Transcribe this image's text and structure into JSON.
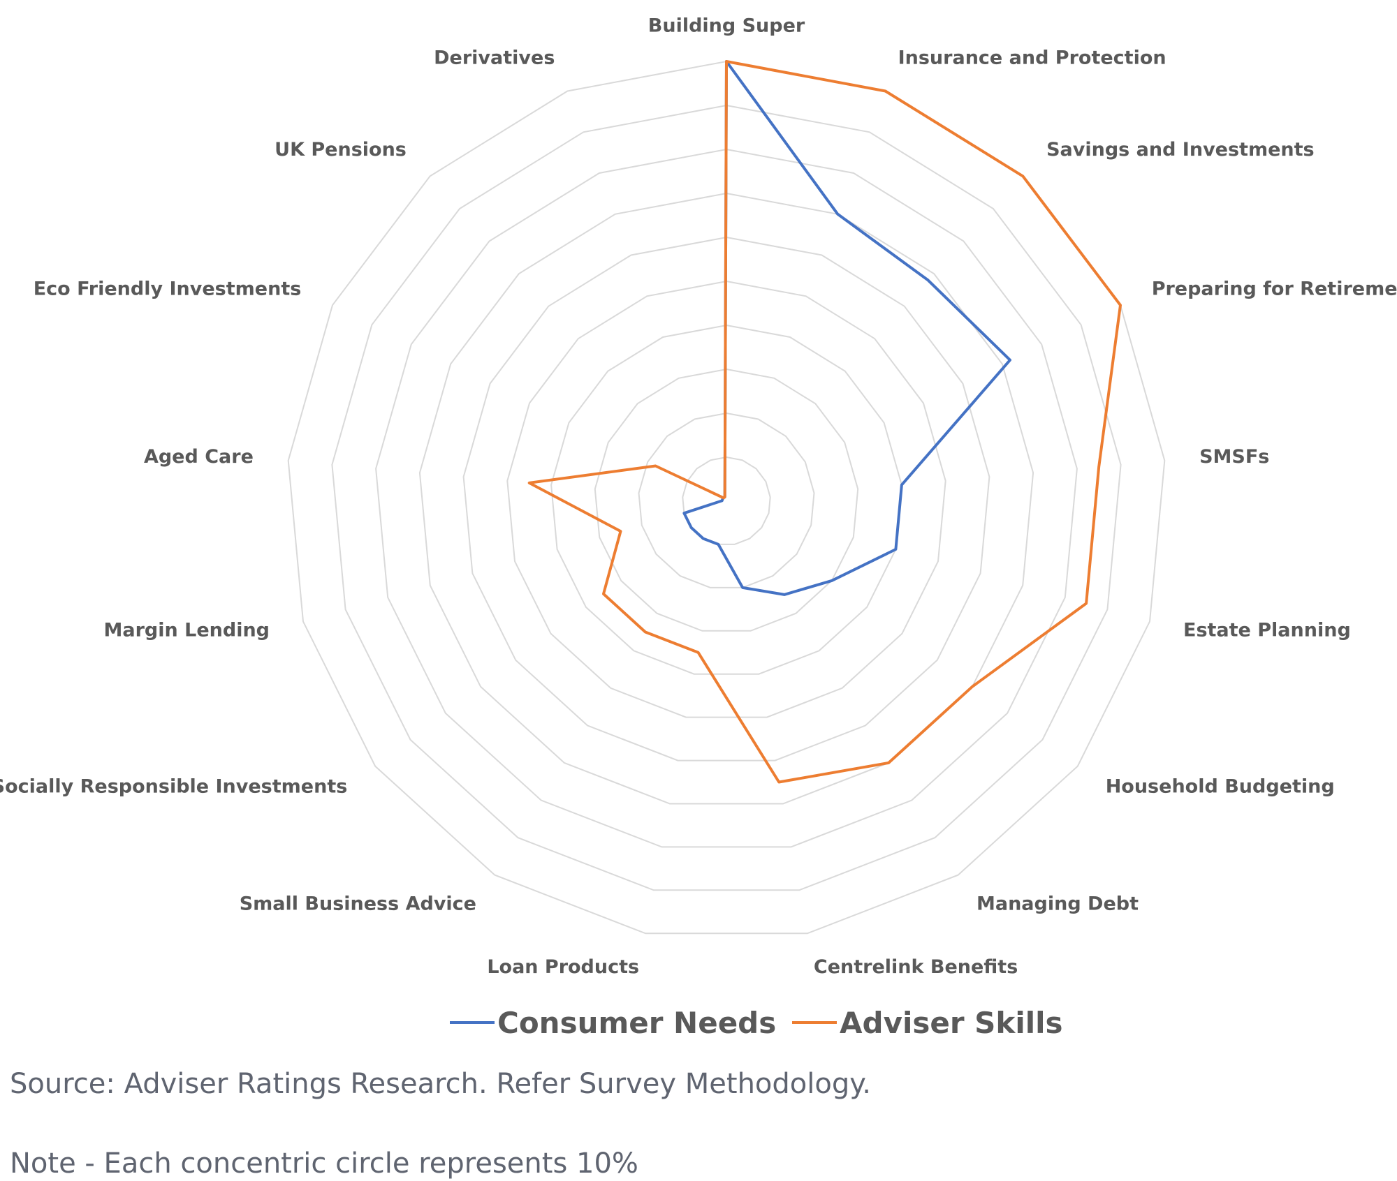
{
  "chart_data": {
    "type": "radar",
    "categories": [
      "Building Super",
      "Insurance and Protection",
      "Savings and Investments",
      "Preparing for Retirement",
      "SMSFs",
      "Estate Planning",
      "Household Budgeting",
      "Managing Debt",
      "Centrelink Benefits",
      "Loan Products",
      "Small Business Advice",
      "Socially Responsible Investments",
      "Margin Lending",
      "Aged Care",
      "Eco Friendly Investments",
      "UK Pensions",
      "Derivatives"
    ],
    "series": [
      {
        "name": "Consumer Needs",
        "color": "#4472C4",
        "values": [
          100,
          70,
          68,
          72,
          40,
          40,
          30,
          25,
          20,
          10,
          10,
          10,
          10,
          1,
          1,
          1,
          1
        ]
      },
      {
        "name": "Adviser Skills",
        "color": "#ED7D31",
        "values": [
          100,
          100,
          100,
          100,
          85,
          85,
          70,
          70,
          65,
          35,
          35,
          35,
          25,
          45,
          18,
          1,
          1
        ]
      }
    ],
    "rlim": [
      0,
      100
    ],
    "ring_step": 10,
    "grid": true,
    "legend_position": "bottom"
  },
  "notes": {
    "source": "Source: Adviser Ratings Research. Refer Survey Methodology.",
    "scale": "Note - Each concentric circle represents 10%"
  }
}
